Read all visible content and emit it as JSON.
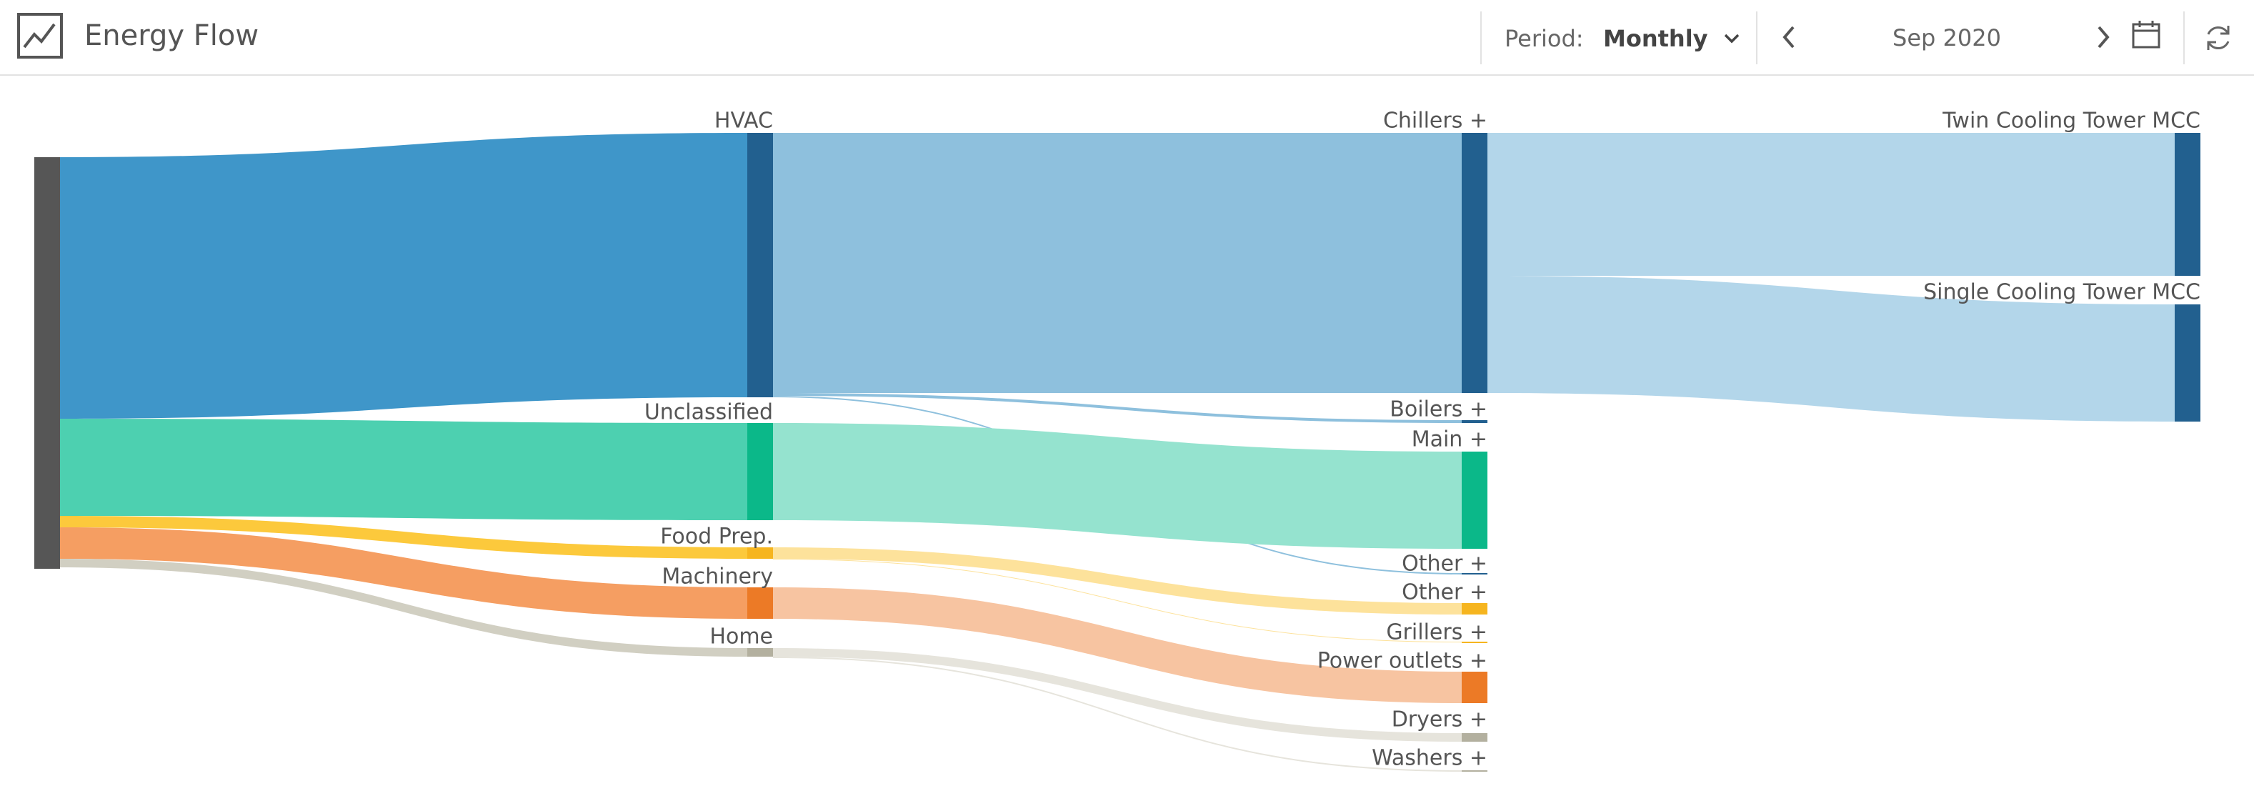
{
  "app": {
    "title": "Energy Flow",
    "icon": "line-chart-icon"
  },
  "toolbar": {
    "period_label": "Period:",
    "period_value": "Monthly",
    "date": "Sep 2020",
    "icons": {
      "prev": "chevron-left-icon",
      "next": "chevron-right-icon",
      "calendar": "calendar-icon",
      "refresh": "refresh-icon",
      "period_dropdown": "chevron-down-icon"
    }
  },
  "chart_data": {
    "type": "sankey",
    "colors": {
      "source": "#565656",
      "hvac": "#3f96c9",
      "hvac_dark": "#22608f",
      "chillers_light": "#8ec0dd",
      "cooling_light": "#b3d6ea",
      "unclassified": "#4dd0b0",
      "unclassified_dark": "#0bb889",
      "unclassified_light": "#95e3cf",
      "food": "#fcc93c",
      "food_dark": "#f6b51f",
      "food_light": "#fde29b",
      "machinery": "#f59e62",
      "machinery_dark": "#ec7a26",
      "machinery_light": "#f7c4a1",
      "home": "#d1cfc2",
      "home_dark": "#b3b09f",
      "home_light": "#e6e4dc"
    },
    "nodes": [
      {
        "id": "source",
        "label": "",
        "color": "#565656"
      },
      {
        "id": "hvac",
        "label": "HVAC",
        "color": "#22608f"
      },
      {
        "id": "unclassified",
        "label": "Unclassified",
        "color": "#0bb889"
      },
      {
        "id": "food",
        "label": "Food Prep.",
        "color": "#f6b51f"
      },
      {
        "id": "machinery",
        "label": "Machinery",
        "color": "#ec7a26"
      },
      {
        "id": "home",
        "label": "Home",
        "color": "#b3b09f"
      },
      {
        "id": "chillers",
        "label": "Chillers +",
        "color": "#22608f"
      },
      {
        "id": "boilers",
        "label": "Boilers +",
        "color": "#22608f"
      },
      {
        "id": "main",
        "label": "Main +",
        "color": "#0bb889"
      },
      {
        "id": "other1",
        "label": "Other +",
        "color": "#22608f"
      },
      {
        "id": "other2",
        "label": "Other +",
        "color": "#f6b51f"
      },
      {
        "id": "grillers",
        "label": "Grillers +",
        "color": "#f6b51f"
      },
      {
        "id": "power",
        "label": "Power outlets +",
        "color": "#ec7a26"
      },
      {
        "id": "dryers",
        "label": "Dryers +",
        "color": "#b3b09f"
      },
      {
        "id": "washers",
        "label": "Washers +",
        "color": "#b3b09f"
      },
      {
        "id": "twin",
        "label": "Twin Cooling Tower MCC",
        "color": "#22608f"
      },
      {
        "id": "single",
        "label": "Single Cooling Tower MCC",
        "color": "#22608f"
      }
    ]
  }
}
